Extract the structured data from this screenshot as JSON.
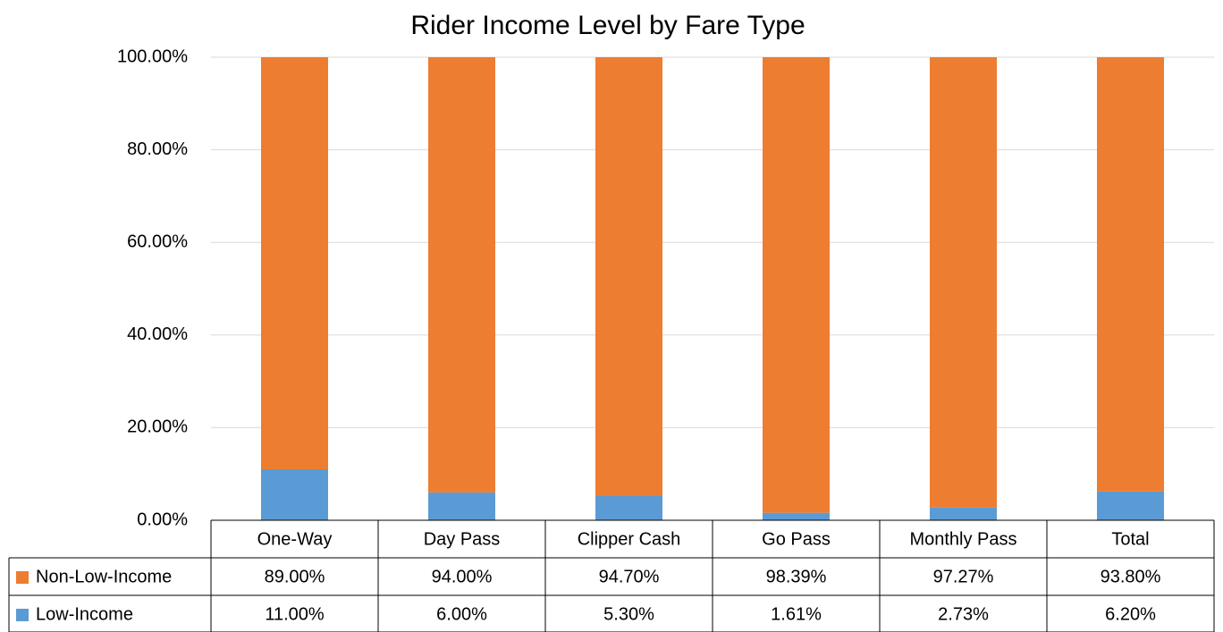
{
  "chart_data": {
    "type": "stacked_bar",
    "title": "Rider Income Level by Fare Type",
    "categories": [
      "One-Way",
      "Day Pass",
      "Clipper Cash",
      "Go Pass",
      "Monthly Pass",
      "Total"
    ],
    "series": [
      {
        "name": "Low-Income",
        "color": "#5b9bd5",
        "values": [
          11,
          6,
          5.3,
          1.61,
          2.73,
          6.2
        ],
        "value_labels": [
          "11.00%",
          "6.00%",
          "5.30%",
          "1.61%",
          "2.73%",
          "6.20%"
        ]
      },
      {
        "name": "Non-Low-Income",
        "color": "#ed7d31",
        "values": [
          89,
          94,
          94.7,
          98.39,
          97.27,
          93.8
        ],
        "value_labels": [
          "89.00%",
          "94.00%",
          "94.70%",
          "98.39%",
          "97.27%",
          "93.80%"
        ]
      }
    ],
    "ylim": [
      0,
      100
    ],
    "yticks": [
      {
        "value": 0,
        "label": "0.00%"
      },
      {
        "value": 20,
        "label": "20.00%"
      },
      {
        "value": 40,
        "label": "40.00%"
      },
      {
        "value": 60,
        "label": "60.00%"
      },
      {
        "value": 80,
        "label": "80.00%"
      },
      {
        "value": 100,
        "label": "100.00%"
      }
    ],
    "grid": true
  }
}
